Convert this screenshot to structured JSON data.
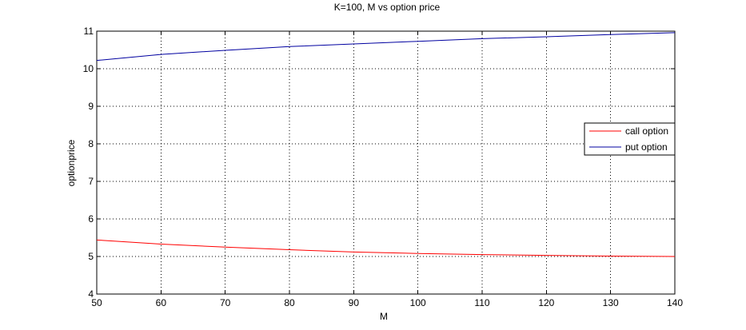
{
  "chart_data": {
    "type": "line",
    "title": "K=100, M vs option price",
    "xlabel": "M",
    "ylabel": "optionprice",
    "xlim": [
      50,
      140
    ],
    "ylim": [
      4,
      11
    ],
    "xticks": [
      50,
      60,
      70,
      80,
      90,
      100,
      110,
      120,
      130,
      140
    ],
    "yticks": [
      4,
      5,
      6,
      7,
      8,
      9,
      10,
      11
    ],
    "grid": true,
    "legend_position": "right",
    "x": [
      50,
      60,
      70,
      80,
      90,
      100,
      110,
      120,
      130,
      140
    ],
    "series": [
      {
        "name": "call option",
        "color": "#ff0000",
        "values": [
          5.44,
          5.33,
          5.25,
          5.18,
          5.12,
          5.08,
          5.05,
          5.03,
          5.01,
          5.0
        ]
      },
      {
        "name": "put option",
        "color": "#0000a0",
        "values": [
          10.22,
          10.38,
          10.49,
          10.59,
          10.66,
          10.73,
          10.8,
          10.85,
          10.91,
          10.96
        ]
      }
    ]
  }
}
